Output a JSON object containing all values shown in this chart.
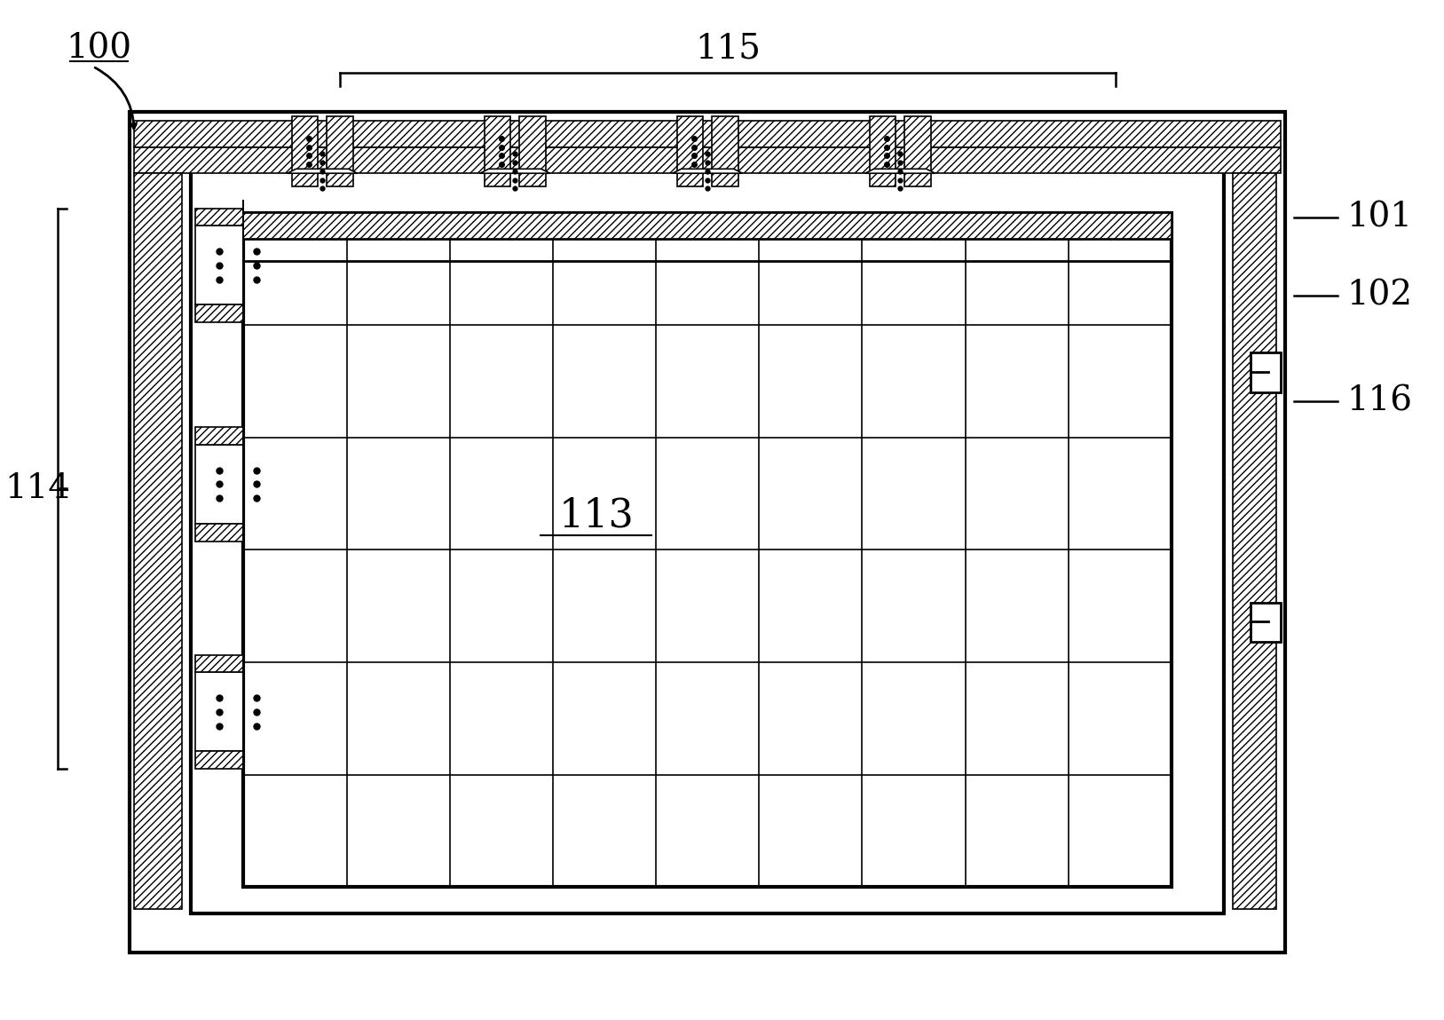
{
  "bg_color": "#ffffff",
  "line_color": "#000000",
  "label_100": "100",
  "label_101": "101",
  "label_102": "102",
  "label_113": "113",
  "label_114": "114",
  "label_115": "115",
  "label_116": "116"
}
